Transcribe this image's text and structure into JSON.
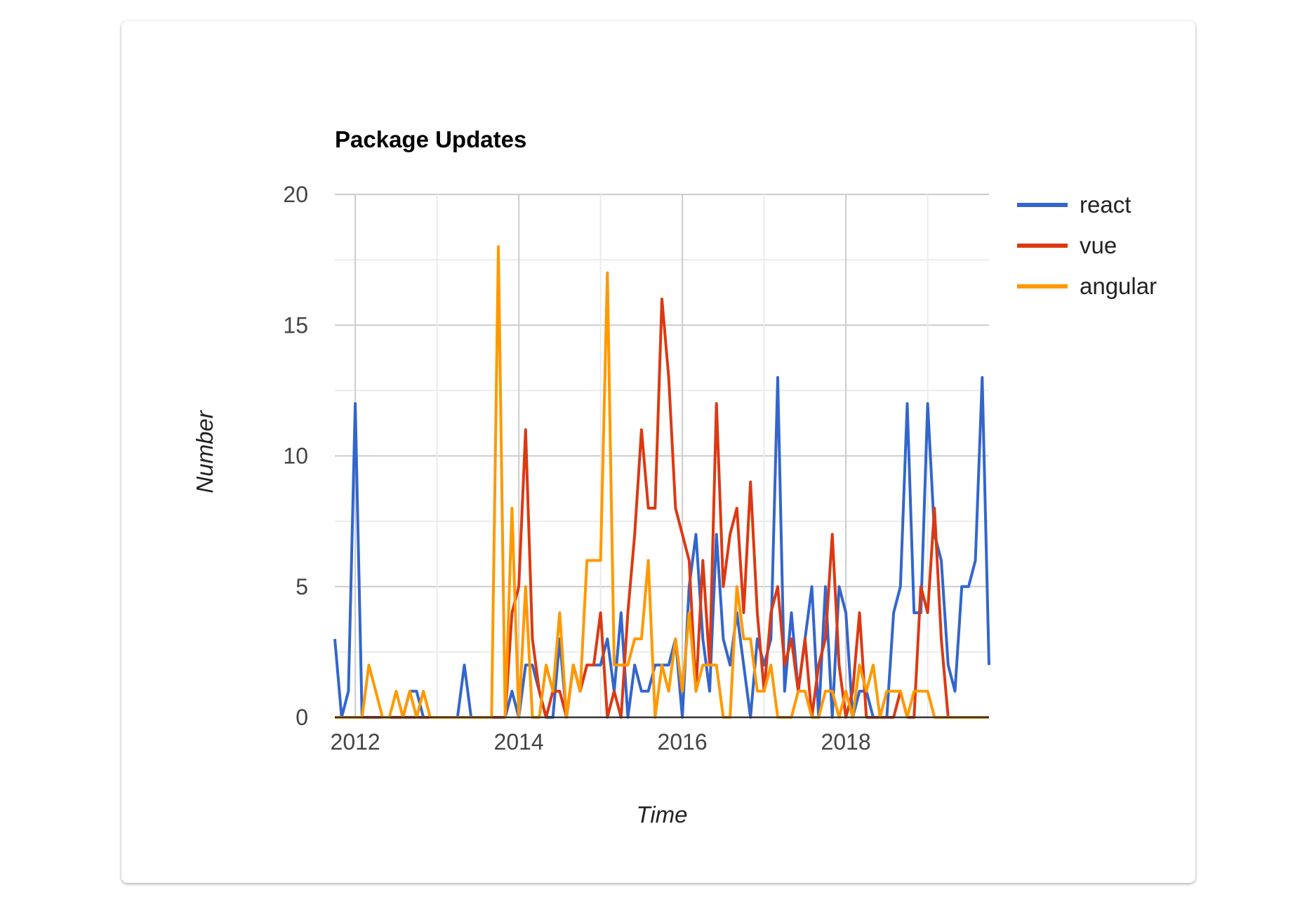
{
  "chart_data": {
    "type": "line",
    "title": "Package Updates",
    "xlabel": "Time",
    "ylabel": "Number",
    "xlim": [
      "2011-10",
      "2019-10"
    ],
    "ylim": [
      0,
      20
    ],
    "y_ticks": [
      "0",
      "5",
      "10",
      "15",
      "20"
    ],
    "x_ticks": [
      {
        "label": "2012",
        "date": "2012-01"
      },
      {
        "label": "2014",
        "date": "2014-01"
      },
      {
        "label": "2016",
        "date": "2016-01"
      },
      {
        "label": "2018",
        "date": "2018-01"
      }
    ],
    "grid": true,
    "legend_position": "right",
    "x": [
      "2011-10",
      "2011-11",
      "2011-12",
      "2012-01",
      "2012-02",
      "2012-03",
      "2012-04",
      "2012-05",
      "2012-06",
      "2012-07",
      "2012-08",
      "2012-09",
      "2012-10",
      "2012-11",
      "2012-12",
      "2013-01",
      "2013-02",
      "2013-03",
      "2013-04",
      "2013-05",
      "2013-06",
      "2013-07",
      "2013-08",
      "2013-09",
      "2013-10",
      "2013-11",
      "2013-12",
      "2014-01",
      "2014-02",
      "2014-03",
      "2014-04",
      "2014-05",
      "2014-06",
      "2014-07",
      "2014-08",
      "2014-09",
      "2014-10",
      "2014-11",
      "2014-12",
      "2015-01",
      "2015-02",
      "2015-03",
      "2015-04",
      "2015-05",
      "2015-06",
      "2015-07",
      "2015-08",
      "2015-09",
      "2015-10",
      "2015-11",
      "2015-12",
      "2016-01",
      "2016-02",
      "2016-03",
      "2016-04",
      "2016-05",
      "2016-06",
      "2016-07",
      "2016-08",
      "2016-09",
      "2016-10",
      "2016-11",
      "2016-12",
      "2017-01",
      "2017-02",
      "2017-03",
      "2017-04",
      "2017-05",
      "2017-06",
      "2017-07",
      "2017-08",
      "2017-09",
      "2017-10",
      "2017-11",
      "2017-12",
      "2018-01",
      "2018-02",
      "2018-03",
      "2018-04",
      "2018-05",
      "2018-06",
      "2018-07",
      "2018-08",
      "2018-09",
      "2018-10",
      "2018-11",
      "2018-12",
      "2019-01",
      "2019-02",
      "2019-03",
      "2019-04",
      "2019-05",
      "2019-06",
      "2019-07",
      "2019-08",
      "2019-09",
      "2019-10"
    ],
    "series": [
      {
        "name": "react",
        "color": "#3366cc",
        "values": [
          3,
          0,
          1,
          12,
          0,
          0,
          0,
          0,
          0,
          0,
          0,
          1,
          1,
          0,
          0,
          0,
          0,
          0,
          0,
          2,
          0,
          0,
          0,
          0,
          0,
          0,
          1,
          0,
          2,
          2,
          1,
          0,
          0,
          3,
          0,
          2,
          1,
          2,
          2,
          2,
          3,
          1,
          4,
          0,
          2,
          1,
          1,
          2,
          2,
          2,
          3,
          0,
          5,
          7,
          3,
          1,
          7,
          3,
          2,
          4,
          2,
          0,
          3,
          2,
          3,
          13,
          1,
          4,
          1,
          3,
          5,
          0,
          5,
          0,
          5,
          4,
          0,
          1,
          1,
          0,
          0,
          0,
          4,
          5,
          12,
          4,
          4,
          12,
          7,
          6,
          2,
          1,
          5,
          5,
          6,
          13,
          2
        ]
      },
      {
        "name": "vue",
        "color": "#dc3912",
        "values": [
          0,
          0,
          0,
          0,
          0,
          0,
          0,
          0,
          0,
          0,
          0,
          0,
          0,
          0,
          0,
          0,
          0,
          0,
          0,
          0,
          0,
          0,
          0,
          0,
          0,
          0,
          4,
          5,
          11,
          3,
          1,
          0,
          1,
          1,
          0,
          2,
          1,
          2,
          2,
          4,
          0,
          1,
          0,
          4,
          7,
          11,
          8,
          8,
          16,
          13,
          8,
          7,
          6,
          1,
          6,
          2,
          12,
          5,
          7,
          8,
          4,
          9,
          4,
          1,
          4,
          5,
          2,
          3,
          1,
          3,
          0,
          2,
          3,
          7,
          2,
          0,
          1,
          4,
          0,
          0,
          0,
          0,
          0,
          1,
          0,
          0,
          5,
          4,
          8,
          3,
          0,
          0,
          0,
          0,
          0,
          0,
          0
        ]
      },
      {
        "name": "angular",
        "color": "#ff9900",
        "values": [
          0,
          0,
          0,
          0,
          0,
          2,
          1,
          0,
          0,
          1,
          0,
          1,
          0,
          1,
          0,
          0,
          0,
          0,
          0,
          0,
          0,
          0,
          0,
          0,
          18,
          0,
          8,
          0,
          5,
          0,
          0,
          2,
          1,
          4,
          0,
          2,
          1,
          6,
          6,
          6,
          17,
          2,
          2,
          2,
          3,
          3,
          6,
          0,
          2,
          1,
          3,
          1,
          4,
          1,
          2,
          2,
          2,
          0,
          0,
          5,
          3,
          3,
          1,
          1,
          2,
          0,
          0,
          0,
          1,
          1,
          0,
          0,
          1,
          1,
          0,
          1,
          0,
          2,
          1,
          2,
          0,
          1,
          1,
          1,
          0,
          1,
          1,
          1,
          0,
          0,
          0,
          0,
          0,
          0,
          0,
          0,
          0
        ]
      }
    ]
  }
}
